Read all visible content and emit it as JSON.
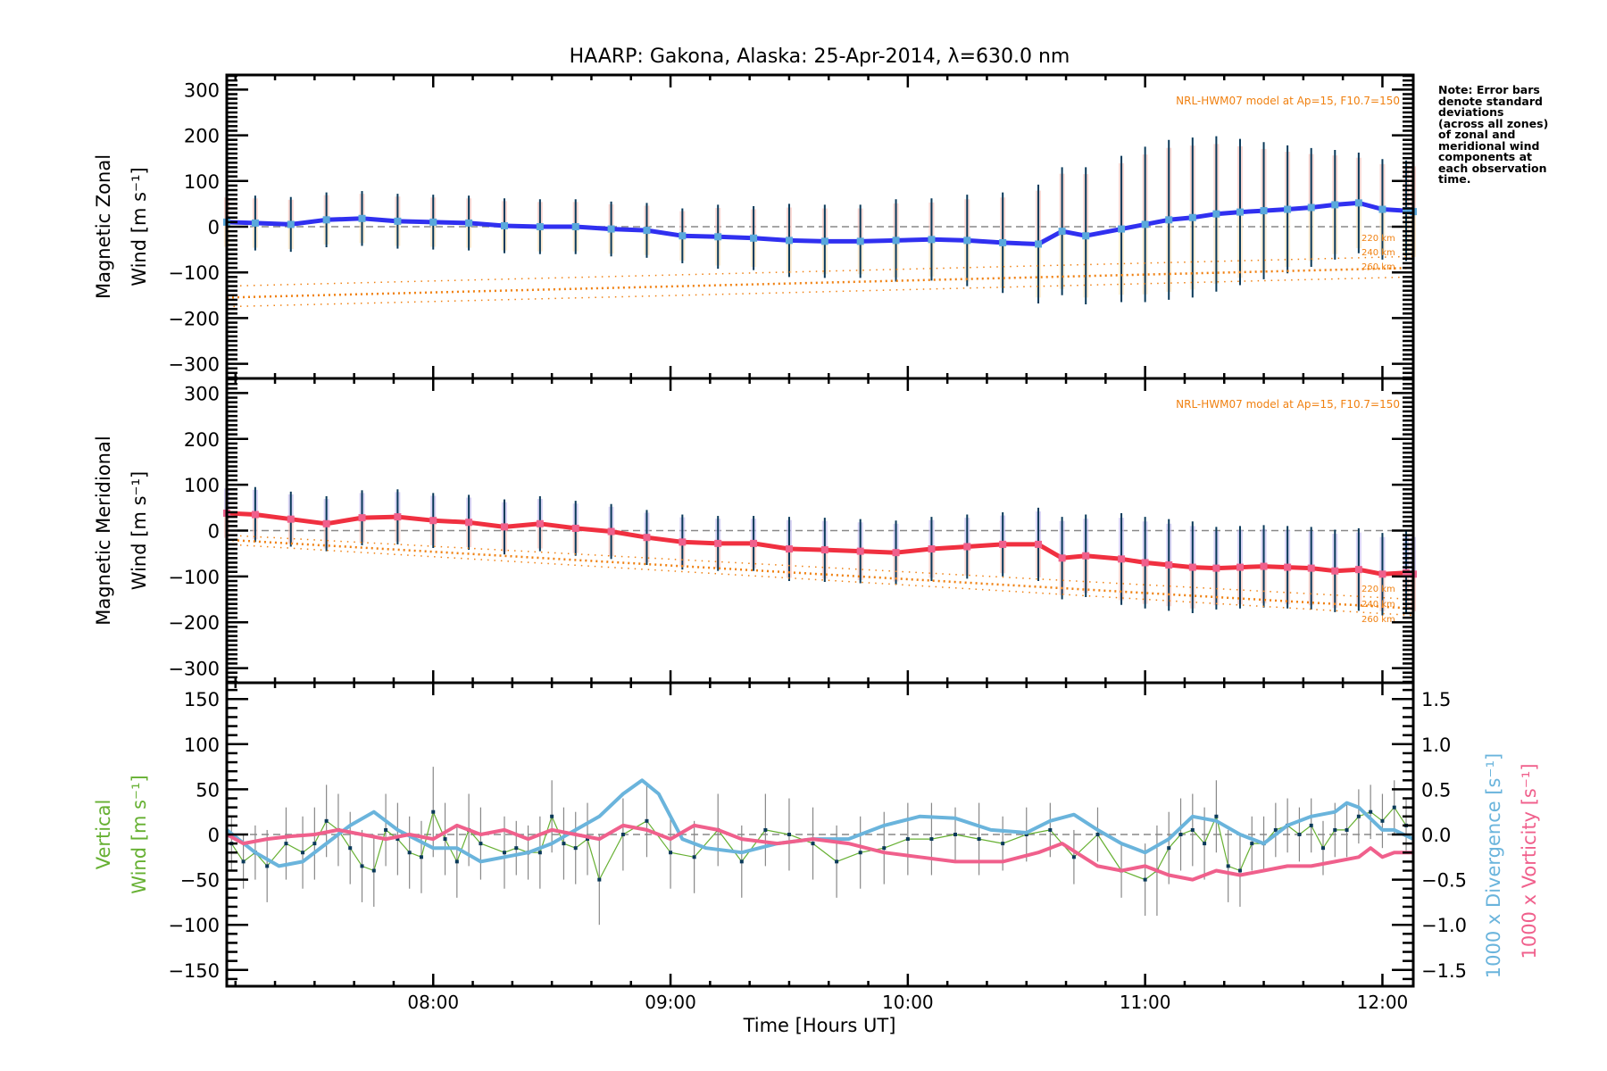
{
  "chart_data": {
    "type": "line",
    "title": "HAARP: Gakona,  Alaska: 25-Apr-2014, λ=630.0 nm",
    "xlabel": "Time [Hours UT]",
    "x_range_hours": [
      7.13,
      12.13
    ],
    "x_ticks": [
      {
        "label": "08:00",
        "hour": 8
      },
      {
        "label": "09:00",
        "hour": 9
      },
      {
        "label": "10:00",
        "hour": 10
      },
      {
        "label": "11:00",
        "hour": 11
      },
      {
        "label": "12:00",
        "hour": 12
      }
    ],
    "note": "Note: Error bars\ndenote standard\ndeviations\n(across all zones)\nof zonal and\nmeridional wind\ncomponents at\neach observation\ntime.",
    "panels": [
      {
        "id": "zonal",
        "ylabel_line1": "Magnetic Zonal",
        "ylabel_line2": "Wind [m s⁻¹]",
        "ylim": [
          -332,
          332
        ],
        "y_ticks": [
          300,
          200,
          100,
          0,
          -100,
          -200,
          -300
        ],
        "model_label": "NRL-HWM07 model at Ap=15, F10.7=150",
        "model_altitudes": [
          "220 km",
          "240 km",
          "260 km"
        ],
        "series": [
          {
            "name": "Mean zonal wind",
            "color": "#3030f0",
            "x": [
              7.13,
              7.25,
              7.4,
              7.55,
              7.7,
              7.85,
              8.0,
              8.15,
              8.3,
              8.45,
              8.6,
              8.75,
              8.9,
              9.05,
              9.2,
              9.35,
              9.5,
              9.65,
              9.8,
              9.95,
              10.1,
              10.25,
              10.4,
              10.55,
              10.65,
              10.75,
              10.9,
              11.0,
              11.1,
              11.2,
              11.3,
              11.4,
              11.5,
              11.6,
              11.7,
              11.8,
              11.9,
              12.0,
              12.1,
              12.13
            ],
            "y": [
              10,
              8,
              5,
              15,
              18,
              12,
              10,
              8,
              2,
              0,
              0,
              -5,
              -8,
              -20,
              -22,
              -25,
              -30,
              -32,
              -32,
              -30,
              -28,
              -30,
              -35,
              -38,
              -10,
              -20,
              -5,
              5,
              15,
              20,
              28,
              32,
              35,
              38,
              42,
              48,
              52,
              38,
              35,
              33
            ],
            "stdev": [
              60,
              60,
              60,
              60,
              60,
              60,
              60,
              60,
              60,
              60,
              60,
              60,
              60,
              60,
              70,
              70,
              80,
              80,
              80,
              90,
              90,
              100,
              110,
              130,
              140,
              150,
              160,
              170,
              175,
              175,
              170,
              160,
              150,
              140,
              130,
              120,
              110,
              110,
              110,
              110
            ]
          },
          {
            "name": "HWM07 220 km",
            "color": "#f08010",
            "x": [
              7.13,
              12.13
            ],
            "y": [
              -130,
              -65
            ]
          },
          {
            "name": "HWM07 240 km",
            "color": "#f08010",
            "x": [
              7.13,
              12.13
            ],
            "y": [
              -155,
              -90
            ]
          },
          {
            "name": "HWM07 260 km",
            "color": "#f08010",
            "x": [
              7.13,
              12.13
            ],
            "y": [
              -175,
              -110
            ]
          }
        ]
      },
      {
        "id": "meridional",
        "ylabel_line1": "Magnetic Meridional",
        "ylabel_line2": "Wind [m s⁻¹]",
        "ylim": [
          -332,
          332
        ],
        "y_ticks": [
          300,
          200,
          100,
          0,
          -100,
          -200,
          -300
        ],
        "model_label": "NRL-HWM07 model at Ap=15, F10.7=150",
        "model_altitudes": [
          "220 km",
          "240 km",
          "260 km"
        ],
        "series": [
          {
            "name": "Mean meridional wind",
            "color": "#f03040",
            "x": [
              7.13,
              7.25,
              7.4,
              7.55,
              7.7,
              7.85,
              8.0,
              8.15,
              8.3,
              8.45,
              8.6,
              8.75,
              8.9,
              9.05,
              9.2,
              9.35,
              9.5,
              9.65,
              9.8,
              9.95,
              10.1,
              10.25,
              10.4,
              10.55,
              10.65,
              10.75,
              10.9,
              11.0,
              11.1,
              11.2,
              11.3,
              11.4,
              11.5,
              11.6,
              11.7,
              11.8,
              11.9,
              12.0,
              12.1,
              12.13
            ],
            "y": [
              38,
              35,
              25,
              15,
              28,
              30,
              22,
              18,
              8,
              15,
              5,
              -2,
              -15,
              -25,
              -28,
              -28,
              -40,
              -42,
              -45,
              -48,
              -40,
              -35,
              -30,
              -30,
              -60,
              -55,
              -62,
              -70,
              -75,
              -80,
              -82,
              -80,
              -78,
              -80,
              -82,
              -88,
              -85,
              -95,
              -92,
              -95
            ],
            "stdev": [
              60,
              60,
              60,
              60,
              60,
              60,
              60,
              60,
              60,
              60,
              60,
              60,
              60,
              60,
              60,
              60,
              70,
              70,
              70,
              70,
              70,
              70,
              70,
              80,
              90,
              90,
              100,
              100,
              100,
              100,
              90,
              90,
              90,
              90,
              90,
              90,
              90,
              90,
              90,
              90
            ]
          },
          {
            "name": "HWM07 220 km",
            "color": "#f08010",
            "x": [
              7.13,
              12.13
            ],
            "y": [
              -10,
              -150
            ]
          },
          {
            "name": "HWM07 240 km",
            "color": "#f08010",
            "x": [
              7.13,
              12.13
            ],
            "y": [
              -20,
              -170
            ]
          },
          {
            "name": "HWM07 260 km",
            "color": "#f08010",
            "x": [
              7.13,
              12.13
            ],
            "y": [
              -30,
              -185
            ]
          }
        ]
      },
      {
        "id": "vertical",
        "ylabel_line1": "Vertical",
        "ylabel_line2": "Wind [m s⁻¹]",
        "ylabel_color": "#66b032",
        "ylim": [
          -168,
          168
        ],
        "y_ticks": [
          150,
          100,
          50,
          0,
          -50,
          -100,
          -150
        ],
        "y2lim": [
          -1.68,
          1.68
        ],
        "y2_ticks": [
          1.5,
          1.0,
          0.5,
          0.0,
          -0.5,
          -1.0,
          -1.5
        ],
        "y2_tick_labels": [
          "1.5",
          "1.0",
          "0.5",
          "0.0",
          "−0.5",
          "−1.0",
          "−1.5"
        ],
        "y2label_divergence": "1000 x Divergence [s⁻¹]",
        "y2label_vorticity": "1000 x Vorticity [s⁻¹]",
        "series": [
          {
            "name": "Vertical wind",
            "color": "#66b032",
            "axis": "left",
            "x": [
              7.15,
              7.2,
              7.25,
              7.3,
              7.38,
              7.45,
              7.5,
              7.55,
              7.6,
              7.65,
              7.7,
              7.75,
              7.8,
              7.85,
              7.9,
              7.95,
              8.0,
              8.05,
              8.1,
              8.15,
              8.2,
              8.3,
              8.35,
              8.4,
              8.45,
              8.5,
              8.55,
              8.6,
              8.65,
              8.7,
              8.8,
              8.9,
              9.0,
              9.1,
              9.2,
              9.3,
              9.4,
              9.5,
              9.6,
              9.7,
              9.8,
              9.9,
              10.0,
              10.1,
              10.2,
              10.3,
              10.4,
              10.5,
              10.6,
              10.7,
              10.8,
              10.9,
              11.0,
              11.05,
              11.1,
              11.15,
              11.2,
              11.25,
              11.3,
              11.35,
              11.4,
              11.45,
              11.5,
              11.55,
              11.6,
              11.65,
              11.7,
              11.75,
              11.8,
              11.85,
              11.9,
              11.95,
              12.0,
              12.05,
              12.1
            ],
            "y": [
              -10,
              -30,
              -20,
              -35,
              -10,
              -20,
              -10,
              15,
              5,
              -15,
              -35,
              -40,
              5,
              -5,
              -20,
              -25,
              25,
              -5,
              -30,
              5,
              -10,
              -20,
              -15,
              -20,
              -20,
              20,
              -10,
              -15,
              -5,
              -50,
              0,
              15,
              -20,
              -25,
              5,
              -30,
              5,
              0,
              -10,
              -30,
              -20,
              -15,
              -5,
              -5,
              0,
              -5,
              -10,
              0,
              5,
              -25,
              0,
              -40,
              -50,
              -40,
              -15,
              0,
              5,
              -10,
              20,
              -35,
              -40,
              -10,
              -10,
              5,
              10,
              0,
              10,
              -15,
              5,
              5,
              20,
              25,
              15,
              30,
              10
            ],
            "stdev": [
              30,
              30,
              30,
              40,
              40,
              40,
              40,
              40,
              40,
              40,
              40,
              40,
              40,
              40,
              40,
              40,
              50,
              40,
              40,
              40,
              40,
              40,
              30,
              30,
              40,
              40,
              40,
              40,
              40,
              50,
              40,
              40,
              40,
              40,
              40,
              40,
              40,
              40,
              40,
              40,
              40,
              40,
              40,
              40,
              30,
              40,
              30,
              30,
              30,
              30,
              30,
              30,
              40,
              50,
              40,
              40,
              40,
              40,
              40,
              40,
              40,
              30,
              30,
              30,
              30,
              30,
              30,
              30,
              30,
              30,
              30,
              30,
              30,
              30,
              30
            ]
          },
          {
            "name": "1000 x Divergence",
            "color": "#6ab4dc",
            "axis": "right",
            "x": [
              7.13,
              7.25,
              7.35,
              7.45,
              7.55,
              7.65,
              7.75,
              7.85,
              8.0,
              8.1,
              8.2,
              8.3,
              8.4,
              8.5,
              8.6,
              8.7,
              8.8,
              8.88,
              8.95,
              9.05,
              9.15,
              9.3,
              9.45,
              9.6,
              9.75,
              9.9,
              10.05,
              10.2,
              10.35,
              10.5,
              10.6,
              10.7,
              10.8,
              10.9,
              11.0,
              11.1,
              11.2,
              11.3,
              11.4,
              11.5,
              11.6,
              11.7,
              11.8,
              11.85,
              11.9,
              12.0,
              12.05,
              12.13
            ],
            "y": [
              0.05,
              -0.2,
              -0.35,
              -0.3,
              -0.1,
              0.1,
              0.25,
              0.05,
              -0.15,
              -0.15,
              -0.3,
              -0.25,
              -0.2,
              -0.1,
              0.05,
              0.2,
              0.45,
              0.6,
              0.45,
              -0.05,
              -0.15,
              -0.2,
              -0.1,
              -0.05,
              -0.05,
              0.1,
              0.2,
              0.18,
              0.05,
              0.02,
              0.15,
              0.22,
              0.05,
              -0.1,
              -0.2,
              -0.05,
              0.2,
              0.15,
              0.0,
              -0.1,
              0.1,
              0.2,
              0.25,
              0.35,
              0.3,
              0.05,
              0.05,
              -0.05
            ]
          },
          {
            "name": "1000 x Vorticity",
            "color": "#f0608c",
            "axis": "right",
            "x": [
              7.13,
              7.2,
              7.3,
              7.4,
              7.5,
              7.6,
              7.7,
              7.8,
              7.9,
              8.0,
              8.1,
              8.2,
              8.3,
              8.4,
              8.5,
              8.6,
              8.7,
              8.8,
              8.9,
              9.0,
              9.1,
              9.2,
              9.3,
              9.45,
              9.6,
              9.75,
              9.9,
              10.05,
              10.2,
              10.4,
              10.55,
              10.65,
              10.8,
              10.9,
              11.0,
              11.1,
              11.2,
              11.3,
              11.4,
              11.5,
              11.6,
              11.7,
              11.8,
              11.9,
              11.95,
              12.0,
              12.05,
              12.13
            ],
            "y": [
              0.0,
              -0.1,
              -0.05,
              -0.02,
              0.0,
              0.05,
              0.0,
              -0.05,
              0.0,
              -0.05,
              0.1,
              0.0,
              0.05,
              -0.05,
              0.05,
              0.0,
              -0.05,
              0.1,
              0.05,
              -0.05,
              0.1,
              0.05,
              -0.05,
              -0.1,
              -0.05,
              -0.1,
              -0.2,
              -0.25,
              -0.3,
              -0.3,
              -0.2,
              -0.1,
              -0.35,
              -0.4,
              -0.35,
              -0.45,
              -0.5,
              -0.4,
              -0.45,
              -0.4,
              -0.35,
              -0.35,
              -0.3,
              -0.25,
              -0.15,
              -0.25,
              -0.2,
              -0.2
            ]
          }
        ]
      }
    ]
  }
}
